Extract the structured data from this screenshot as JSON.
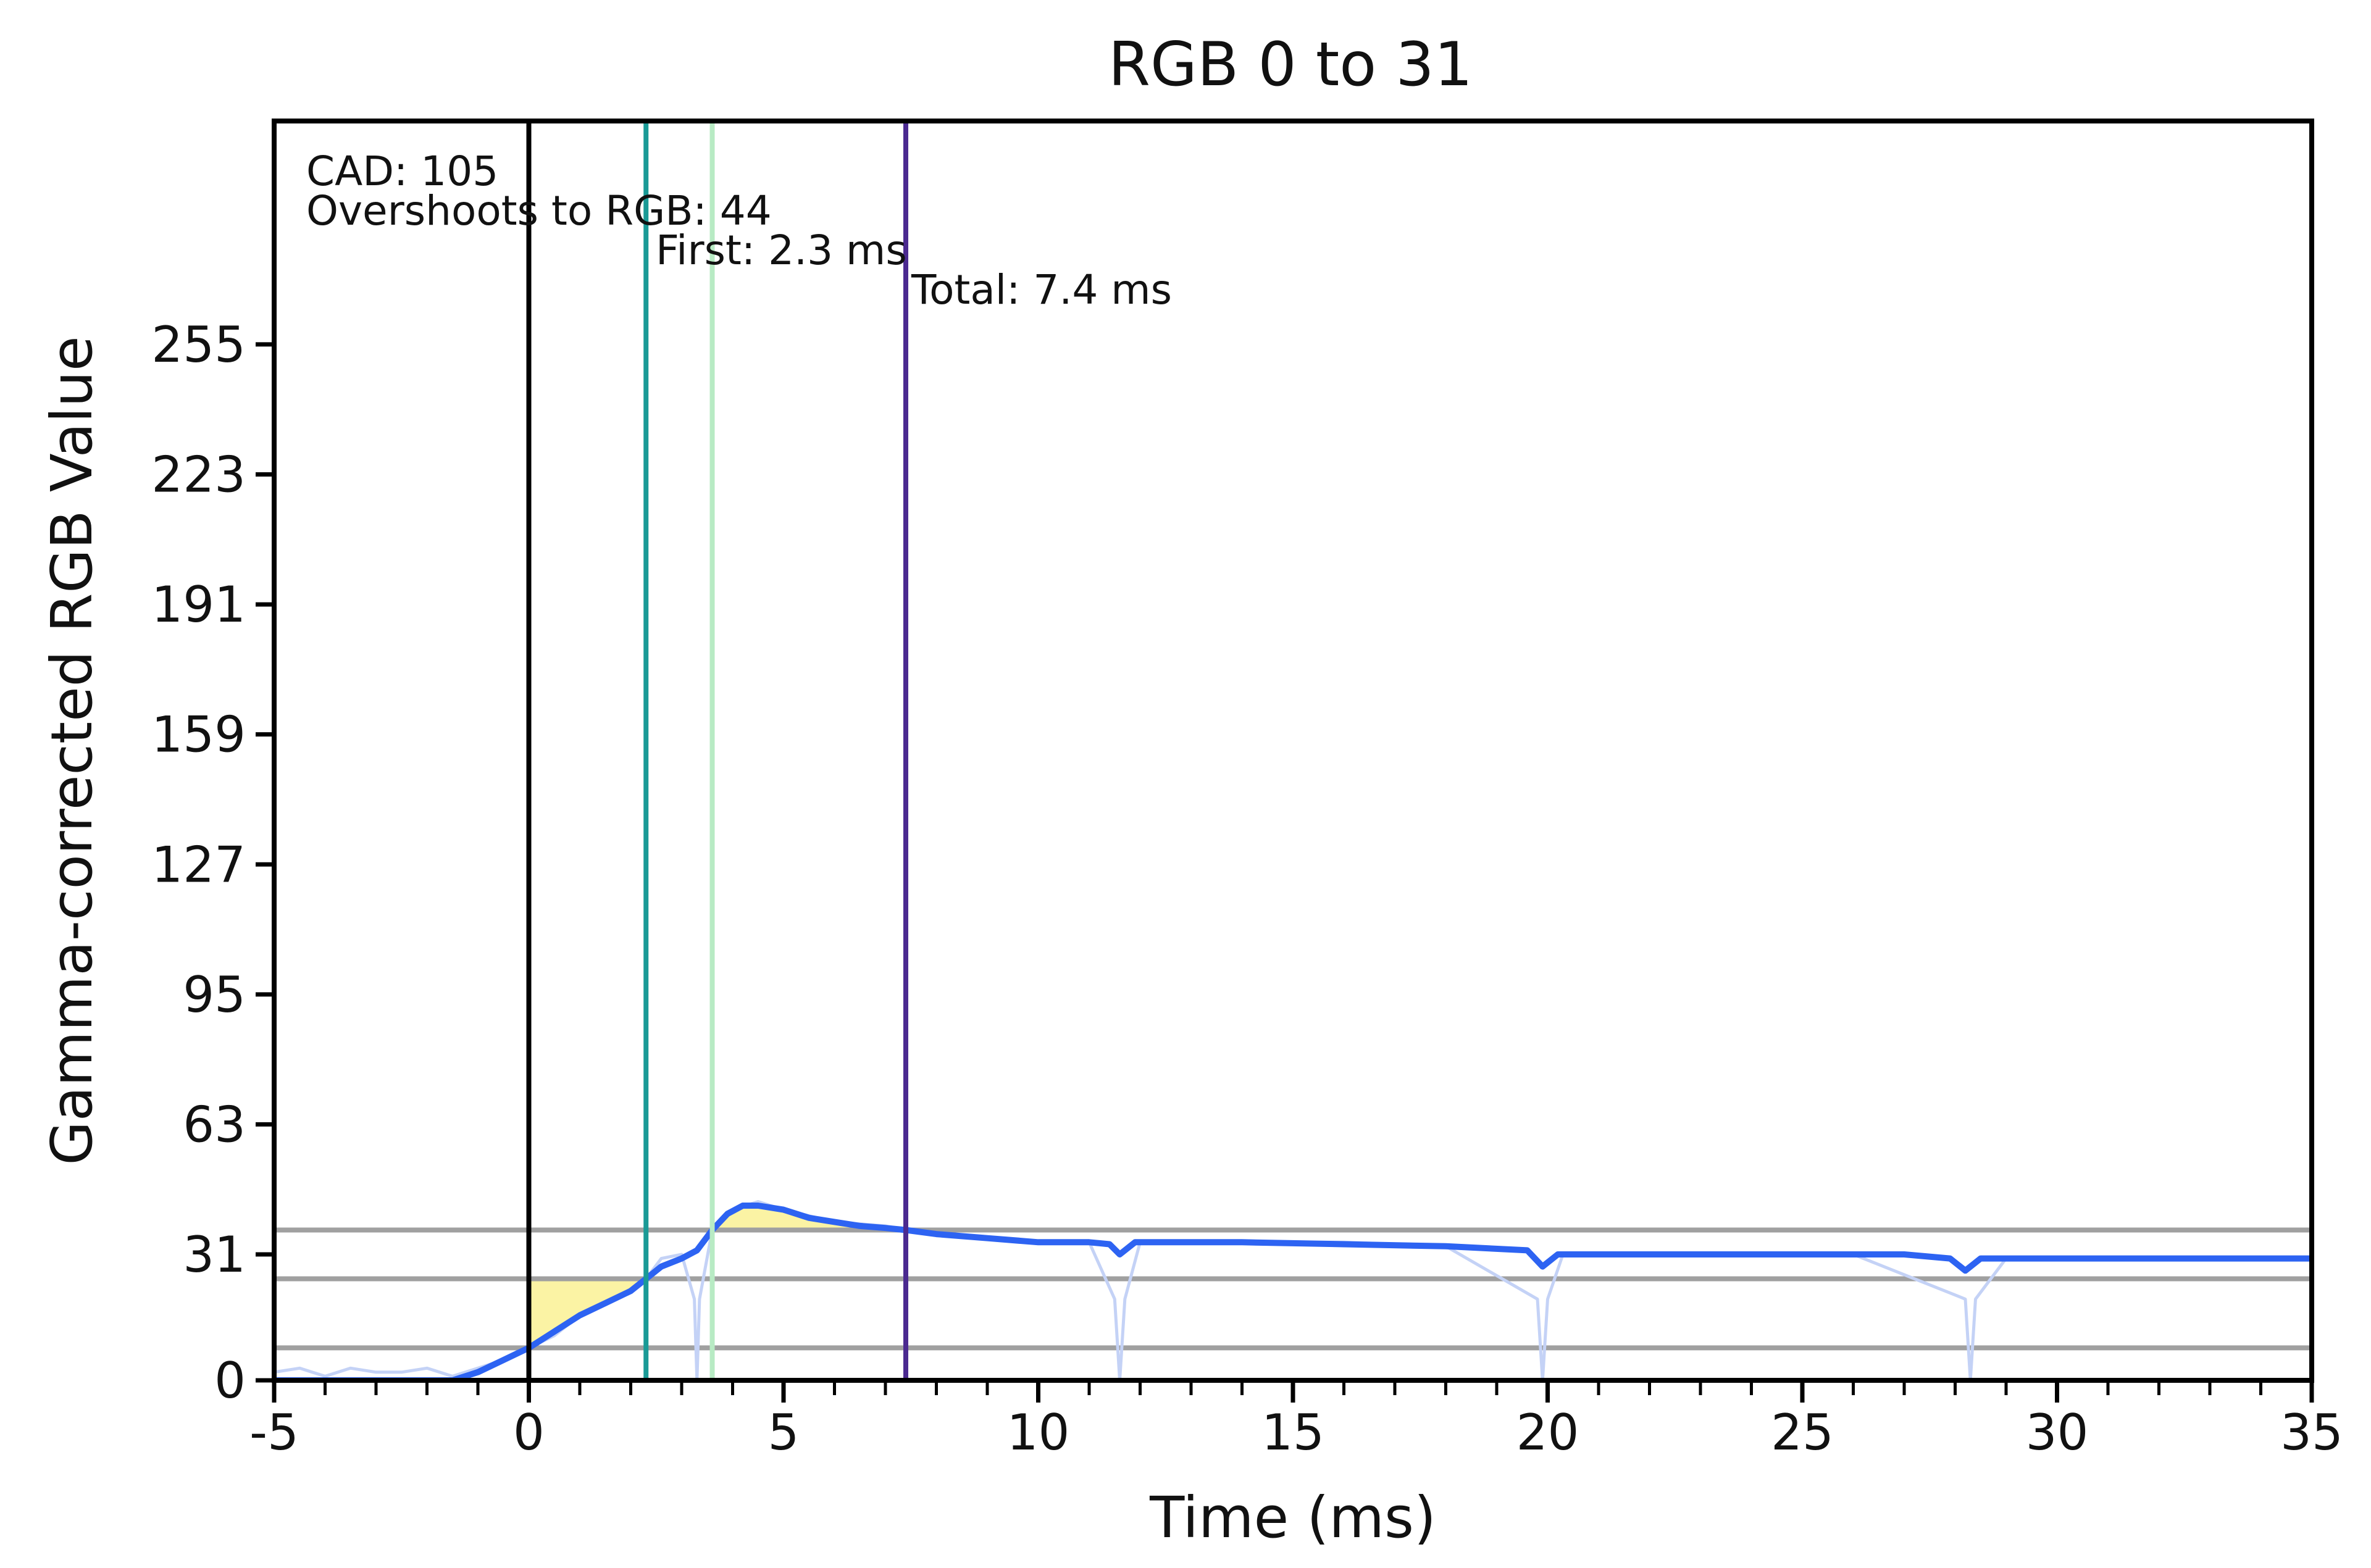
{
  "chart_data": {
    "type": "line",
    "title": "RGB 0 to 31",
    "xlabel": "Time (ms)",
    "ylabel": "Gamma-corrected RGB Value",
    "xlim": [
      -5,
      35
    ],
    "ylim": [
      0,
      310
    ],
    "x_ticks": [
      -5,
      0,
      5,
      10,
      15,
      20,
      25,
      30,
      35
    ],
    "x_tick_labels": [
      "-5",
      "0",
      "5",
      "10",
      "15",
      "20",
      "25",
      "30",
      "35"
    ],
    "y_ticks": [
      0,
      31,
      63,
      95,
      127,
      159,
      191,
      223,
      255
    ],
    "y_tick_labels": [
      "0",
      "31",
      "63",
      "95",
      "127",
      "159",
      "191",
      "223",
      "255"
    ],
    "x_minor_step": 1,
    "grid": false,
    "annotations": [
      {
        "text": "CAD: 105"
      },
      {
        "text": "Overshoots to RGB: 44"
      },
      {
        "text": "First: 2.3 ms"
      },
      {
        "text": "Total: 7.4 ms"
      }
    ],
    "vertical_lines": [
      {
        "x": 0,
        "color": "#000000"
      },
      {
        "x": 2.3,
        "color": "#1a9a96"
      },
      {
        "x": 3.6,
        "color": "#b8ebc4"
      },
      {
        "x": 7.4,
        "color": "#4b2a90"
      }
    ],
    "horizontal_lines": [
      {
        "y": 37,
        "color": "#a0a0a0"
      },
      {
        "y": 25,
        "color": "#a0a0a0"
      },
      {
        "y": 8,
        "color": "#a0a0a0"
      }
    ],
    "shaded_regions": [
      {
        "x_start": 0,
        "x_end": 2.3,
        "lower": "curve",
        "upper": 25,
        "color": "#fbf3a4"
      },
      {
        "x_start": 3.6,
        "x_end": 7.4,
        "lower": 37,
        "upper": "curve",
        "color": "#fbf3a4"
      }
    ],
    "series": [
      {
        "role": "smoothed",
        "color": "#2d63f2",
        "x": [
          -5,
          -4,
          -3,
          -2,
          -1.5,
          -1,
          -0.5,
          0,
          0.5,
          1,
          1.5,
          2,
          2.3,
          2.6,
          3.0,
          3.3,
          3.6,
          3.9,
          4.2,
          4.5,
          5,
          5.5,
          6,
          6.5,
          7,
          7.4,
          8,
          9,
          10,
          11,
          11.4,
          11.6,
          11.9,
          12.5,
          14,
          16,
          18,
          19.6,
          19.9,
          20.2,
          21,
          23,
          25,
          27,
          27.9,
          28.2,
          28.5,
          29,
          31,
          33,
          35
        ],
        "y": [
          0,
          0,
          0,
          0,
          0,
          2,
          5,
          8,
          12,
          16,
          19,
          22,
          25,
          28,
          30,
          32,
          37,
          41,
          43,
          43,
          42,
          40,
          39,
          38,
          37.5,
          37,
          36,
          35,
          34,
          34,
          33.5,
          31,
          34,
          34,
          34,
          33.5,
          33,
          32,
          28,
          31,
          31,
          31,
          31,
          31,
          30,
          27,
          30,
          30,
          30,
          30,
          30
        ]
      },
      {
        "role": "raw",
        "color": "#c4d2f6",
        "x": [
          -5,
          -4.5,
          -4,
          -3.5,
          -3,
          -2.5,
          -2,
          -1.5,
          -1,
          -0.5,
          0,
          0.5,
          1,
          1.5,
          2,
          2.3,
          2.6,
          3.0,
          3.25,
          3.3,
          3.35,
          3.6,
          4,
          4.5,
          5,
          6,
          7,
          7.4,
          8,
          9,
          10,
          11,
          11.5,
          11.6,
          11.7,
          12,
          14,
          16,
          18,
          19.8,
          19.9,
          20.0,
          20.3,
          22,
          24,
          26,
          28.2,
          28.3,
          28.4,
          29,
          31,
          33,
          35
        ],
        "y": [
          2,
          3,
          1,
          3,
          2,
          2,
          3,
          1,
          3,
          5,
          8,
          11,
          16,
          19,
          22,
          25,
          30,
          31,
          20,
          0,
          20,
          37,
          42,
          44,
          42,
          39,
          38,
          37,
          36,
          35,
          34,
          34,
          20,
          0,
          20,
          34,
          34,
          34,
          33,
          20,
          0,
          20,
          31,
          31,
          31,
          31,
          20,
          0,
          20,
          30,
          30,
          30,
          30
        ]
      }
    ]
  }
}
